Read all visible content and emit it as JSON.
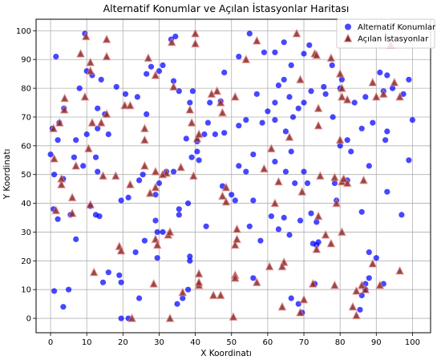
{
  "chart_data": {
    "type": "scatter",
    "title": "Alternatif Konumlar ve Açılan İstasyonlar Haritası",
    "xlabel": "X Koordinatı",
    "ylabel": "Y Koordinatı",
    "xlim": [
      -4,
      105
    ],
    "ylim": [
      -5,
      104
    ],
    "xticks": [
      0,
      10,
      20,
      30,
      40,
      50,
      60,
      70,
      80,
      90,
      100
    ],
    "yticks": [
      0,
      10,
      20,
      30,
      40,
      50,
      60,
      70,
      80,
      90,
      100
    ],
    "grid": true,
    "legend_position": "top-right",
    "series": [
      {
        "name": "Alternatif Konumlar",
        "marker": "circle",
        "color": "#0000ff",
        "points": [
          [
            9.5,
            99
          ],
          [
            1.5,
            91
          ],
          [
            8,
            80
          ],
          [
            3.7,
            73
          ],
          [
            0.5,
            66
          ],
          [
            2.4,
            68
          ],
          [
            13,
            73
          ],
          [
            10,
            86
          ],
          [
            11.5,
            84.5
          ],
          [
            14,
            83
          ],
          [
            18.2,
            80.5
          ],
          [
            20.7,
            78
          ],
          [
            24,
            77
          ],
          [
            26.5,
            71
          ],
          [
            27.8,
            87.5
          ],
          [
            26.5,
            85
          ],
          [
            30,
            86
          ],
          [
            33.3,
            97
          ],
          [
            34.5,
            98
          ],
          [
            31,
            88
          ],
          [
            34,
            82.5
          ],
          [
            35.5,
            79
          ],
          [
            39.3,
            79
          ],
          [
            38.5,
            75
          ],
          [
            47,
            75.5
          ],
          [
            48,
            85.5
          ],
          [
            45.5,
            64
          ],
          [
            48,
            64.5
          ],
          [
            37.5,
            62.5
          ],
          [
            40.5,
            61.5
          ],
          [
            44,
            75
          ],
          [
            52,
            91
          ],
          [
            55,
            99
          ],
          [
            59,
            92.5
          ],
          [
            62,
            92.5
          ],
          [
            64.5,
            96
          ],
          [
            57,
            78
          ],
          [
            62,
            69
          ],
          [
            65,
            65
          ],
          [
            66.5,
            58
          ],
          [
            62,
            54.5
          ],
          [
            56,
            57
          ],
          [
            65,
            51
          ],
          [
            70,
            51
          ],
          [
            71,
            47
          ],
          [
            64.5,
            35
          ],
          [
            69,
            34
          ],
          [
            73.5,
            33.5
          ],
          [
            72,
            36.5
          ],
          [
            79,
            41
          ],
          [
            80,
            60
          ],
          [
            83,
            58
          ],
          [
            78,
            70
          ],
          [
            76,
            78
          ],
          [
            77.8,
            88
          ],
          [
            75.5,
            80.5
          ],
          [
            80,
            80
          ],
          [
            80.5,
            83
          ],
          [
            82,
            62
          ],
          [
            84,
            75
          ],
          [
            87,
            77
          ],
          [
            86,
            66
          ],
          [
            89,
            68
          ],
          [
            92.5,
            62
          ],
          [
            93,
            65
          ],
          [
            93,
            44
          ],
          [
            88,
            53
          ],
          [
            86,
            37
          ],
          [
            91,
            85.5
          ],
          [
            92,
            79
          ],
          [
            93,
            84.5
          ],
          [
            94.5,
            80
          ],
          [
            97.5,
            78
          ],
          [
            99,
            83
          ],
          [
            100,
            69
          ],
          [
            99,
            55
          ],
          [
            97,
            36
          ],
          [
            88,
            23
          ],
          [
            88,
            14
          ],
          [
            87,
            10
          ],
          [
            85.5,
            3
          ],
          [
            87,
            12
          ],
          [
            5,
            10
          ],
          [
            1,
            9.5
          ],
          [
            3.5,
            4
          ],
          [
            0.8,
            38
          ],
          [
            2,
            34.5
          ],
          [
            5.5,
            36
          ],
          [
            7,
            27.5
          ],
          [
            12.5,
            36
          ],
          [
            13.5,
            35.5
          ],
          [
            11,
            39
          ],
          [
            14.5,
            12.5
          ],
          [
            16,
            16
          ],
          [
            19,
            15
          ],
          [
            19.5,
            12.5
          ],
          [
            19.5,
            0
          ],
          [
            21.5,
            0
          ],
          [
            23.5,
            23
          ],
          [
            26,
            27
          ],
          [
            24.5,
            7
          ],
          [
            29,
            34
          ],
          [
            29.5,
            30
          ],
          [
            29.5,
            21
          ],
          [
            31,
            30
          ],
          [
            30,
            47
          ],
          [
            32,
            51
          ],
          [
            34,
            51
          ],
          [
            35.5,
            38
          ],
          [
            35.5,
            36
          ],
          [
            38,
            40
          ],
          [
            38.5,
            20
          ],
          [
            38.5,
            21.5
          ],
          [
            38,
            10
          ],
          [
            35,
            5
          ],
          [
            36.5,
            7
          ],
          [
            43,
            32
          ],
          [
            47.5,
            46
          ],
          [
            50,
            43
          ],
          [
            51,
            41
          ],
          [
            52,
            53
          ],
          [
            54,
            51
          ],
          [
            56,
            41
          ],
          [
            55,
            32
          ],
          [
            56,
            14
          ],
          [
            58,
            27
          ],
          [
            61,
            35.5
          ],
          [
            63,
            31
          ],
          [
            66,
            29
          ],
          [
            67.5,
            47
          ],
          [
            72.5,
            26
          ],
          [
            73.5,
            25.5
          ],
          [
            74,
            26.5
          ],
          [
            66.5,
            7
          ],
          [
            69.5,
            2
          ],
          [
            68.5,
            5
          ],
          [
            73,
            12
          ],
          [
            78.5,
            47
          ],
          [
            82,
            48
          ],
          [
            86,
            8
          ],
          [
            90,
            21
          ],
          [
            92,
            12
          ],
          [
            40.5,
            58
          ],
          [
            41,
            55
          ],
          [
            39,
            56
          ],
          [
            25.5,
            50
          ],
          [
            24.5,
            48
          ],
          [
            29,
            43
          ],
          [
            19.5,
            41
          ],
          [
            21.5,
            42
          ],
          [
            9,
            53
          ],
          [
            3.5,
            48.5
          ],
          [
            6.5,
            56
          ],
          [
            7,
            62
          ],
          [
            10,
            64
          ],
          [
            13,
            66
          ],
          [
            15,
            71
          ],
          [
            16,
            64
          ],
          [
            12.5,
            56
          ],
          [
            13,
            51
          ],
          [
            2,
            62
          ],
          [
            0,
            57
          ],
          [
            1,
            50
          ],
          [
            43.5,
            68
          ],
          [
            42.5,
            64
          ],
          [
            52,
            67
          ],
          [
            54,
            69
          ],
          [
            66,
            77
          ],
          [
            67,
            70
          ],
          [
            68.5,
            73
          ],
          [
            70,
            75
          ],
          [
            72,
            79
          ],
          [
            58.5,
            68
          ],
          [
            60,
            72
          ],
          [
            62,
            75
          ],
          [
            63,
            81
          ],
          [
            64.5,
            83
          ],
          [
            66.5,
            88
          ],
          [
            70,
            92
          ],
          [
            71.5,
            95
          ]
        ]
      },
      {
        "name": "Açılan İstasyonlar",
        "marker": "triangle",
        "color": "#8b2e2e",
        "points": [
          [
            9.8,
            98
          ],
          [
            8.3,
            92
          ],
          [
            11,
            89
          ],
          [
            15.5,
            97
          ],
          [
            15.5,
            91
          ],
          [
            11,
            86
          ],
          [
            9.5,
            77
          ],
          [
            3.9,
            76.5
          ],
          [
            3.8,
            72.5
          ],
          [
            2.5,
            68
          ],
          [
            0.8,
            66
          ],
          [
            11.5,
            68
          ],
          [
            14,
            68
          ],
          [
            15.5,
            71
          ],
          [
            20.5,
            74
          ],
          [
            27,
            90.5
          ],
          [
            29,
            84.5
          ],
          [
            33.5,
            96
          ],
          [
            34,
            80.5
          ],
          [
            40,
            99
          ],
          [
            40,
            95.5
          ],
          [
            44.5,
            78
          ],
          [
            46,
            79
          ],
          [
            47,
            75
          ],
          [
            47.5,
            71.5
          ],
          [
            51,
            77
          ],
          [
            54,
            90
          ],
          [
            57,
            96.5
          ],
          [
            68,
            99
          ],
          [
            73,
            92
          ],
          [
            73.5,
            91.5
          ],
          [
            77.5,
            90.5
          ],
          [
            80,
            85
          ],
          [
            80.5,
            80
          ],
          [
            80.5,
            77
          ],
          [
            89,
            82
          ],
          [
            90,
            77
          ],
          [
            92,
            78
          ],
          [
            94,
            95
          ],
          [
            95,
            82
          ],
          [
            96.5,
            77
          ],
          [
            69,
            83
          ],
          [
            74,
            73
          ],
          [
            74,
            67
          ],
          [
            82,
            76
          ],
          [
            80,
            62
          ],
          [
            66,
            63
          ],
          [
            61,
            59
          ],
          [
            59,
            52
          ],
          [
            63,
            47.5
          ],
          [
            62,
            40
          ],
          [
            69.5,
            44
          ],
          [
            74.5,
            49.5
          ],
          [
            74,
            35.5
          ],
          [
            78.5,
            49
          ],
          [
            80.5,
            47.5
          ],
          [
            79,
            40
          ],
          [
            81,
            48.5
          ],
          [
            82,
            47
          ],
          [
            86.5,
            48
          ],
          [
            80.5,
            30
          ],
          [
            76,
            29
          ],
          [
            77.5,
            26
          ],
          [
            73.5,
            24
          ],
          [
            78.5,
            11.5
          ],
          [
            83.5,
            4
          ],
          [
            84.5,
            9.5
          ],
          [
            86,
            11.5
          ],
          [
            87,
            10
          ],
          [
            84.5,
            1
          ],
          [
            91,
            11.5
          ],
          [
            89,
            19
          ],
          [
            96.5,
            16.5
          ],
          [
            72.5,
            12
          ],
          [
            70,
            6.5
          ],
          [
            69,
            2
          ],
          [
            64,
            4
          ],
          [
            64.5,
            19.5
          ],
          [
            64,
            18
          ],
          [
            60.5,
            18
          ],
          [
            57,
            12.5
          ],
          [
            51,
            15
          ],
          [
            51,
            25.5
          ],
          [
            51.5,
            27.5
          ],
          [
            51.5,
            31
          ],
          [
            48.5,
            40.5
          ],
          [
            47.5,
            42.5
          ],
          [
            48.5,
            45.5
          ],
          [
            40.5,
            62.5
          ],
          [
            41,
            64
          ],
          [
            39,
            68
          ],
          [
            38.5,
            72.5
          ],
          [
            36,
            52.5
          ],
          [
            39.5,
            49.5
          ],
          [
            32,
            50.5
          ],
          [
            29,
            51
          ],
          [
            26,
            53
          ],
          [
            26,
            62
          ],
          [
            26,
            66
          ],
          [
            22,
            74
          ],
          [
            27.5,
            43.5
          ],
          [
            29,
            45.5
          ],
          [
            31,
            50
          ],
          [
            22,
            46.5
          ],
          [
            18,
            49.5
          ],
          [
            14.5,
            49.5
          ],
          [
            10.5,
            59
          ],
          [
            11,
            39.5
          ],
          [
            7,
            53
          ],
          [
            3,
            48.5
          ],
          [
            3,
            46.5
          ],
          [
            1,
            55.5
          ],
          [
            1.5,
            37.5
          ],
          [
            6,
            36.5
          ],
          [
            6,
            42
          ],
          [
            12,
            16
          ],
          [
            19,
            25
          ],
          [
            19.5,
            23.5
          ],
          [
            22.5,
            0
          ],
          [
            28.5,
            12
          ],
          [
            29,
            27.5
          ],
          [
            29.5,
            25.5
          ],
          [
            32.5,
            29
          ],
          [
            33,
            30
          ],
          [
            33,
            0
          ],
          [
            36.5,
            9
          ],
          [
            41,
            15.5
          ],
          [
            41,
            11.5
          ],
          [
            41,
            12.5
          ],
          [
            45,
            8
          ],
          [
            47,
            8
          ],
          [
            50.5,
            0.5
          ],
          [
            51,
            14
          ]
        ]
      }
    ]
  }
}
